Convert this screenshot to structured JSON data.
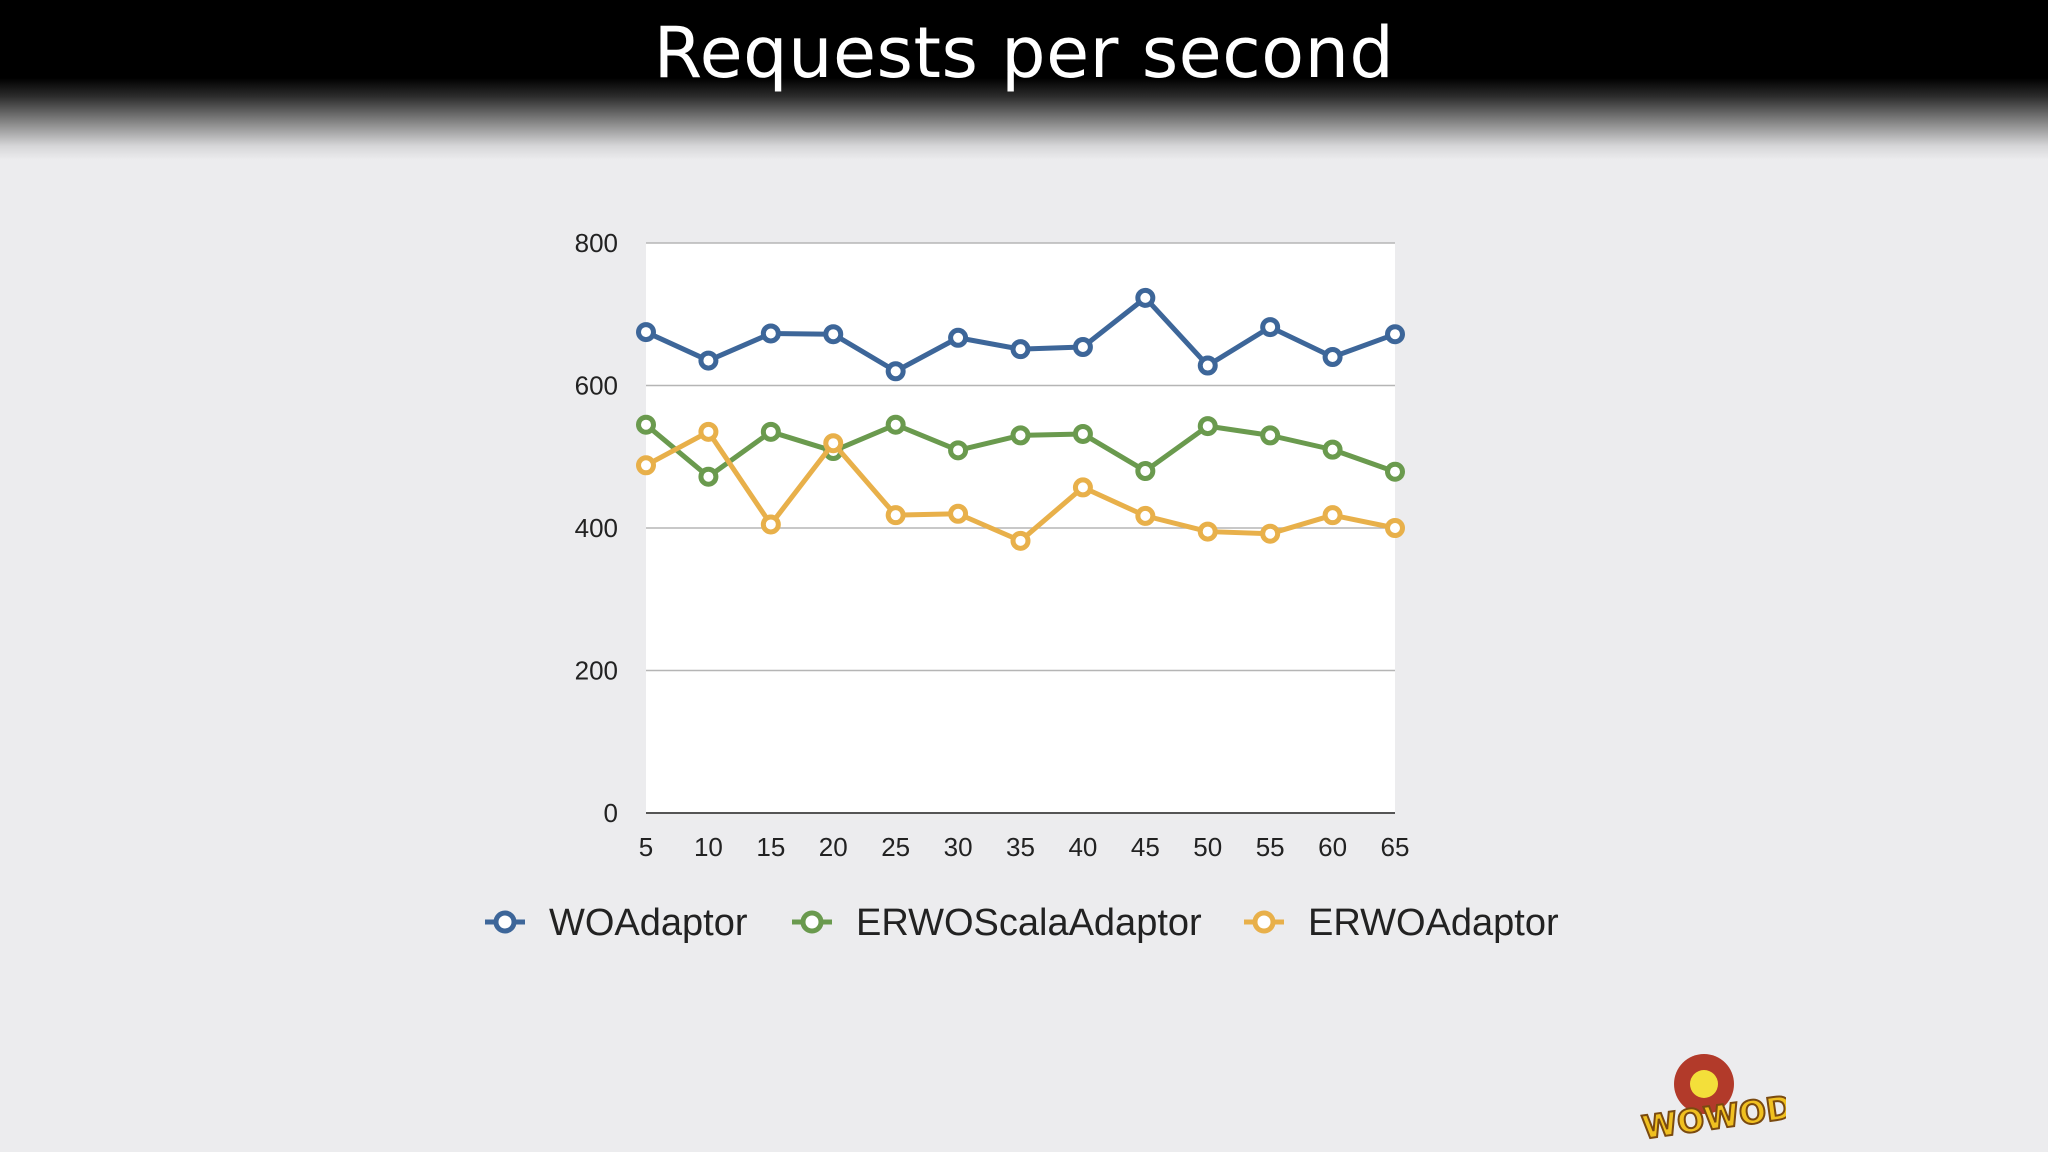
{
  "slide": {
    "title": "Requests per second"
  },
  "colors": {
    "WOAdaptor": "#3d6699",
    "ERWOScalaAdaptor": "#6a9a4e",
    "ERWOAdaptor": "#e8b04a"
  },
  "logo": {
    "text": "WOWODC",
    "icon": "wowodc-logo"
  },
  "chart_data": {
    "type": "line",
    "title": "",
    "xlabel": "",
    "ylabel": "",
    "x": [
      5,
      10,
      15,
      20,
      25,
      30,
      35,
      40,
      45,
      50,
      55,
      60,
      65
    ],
    "ylim": [
      0,
      800
    ],
    "yticks": [
      0,
      200,
      400,
      600,
      800
    ],
    "grid": true,
    "legend_position": "bottom",
    "series": [
      {
        "name": "WOAdaptor",
        "color": "#3d6699",
        "values": [
          675,
          635,
          673,
          672,
          620,
          667,
          651,
          654,
          723,
          628,
          682,
          640,
          672
        ]
      },
      {
        "name": "ERWOScalaAdaptor",
        "color": "#6a9a4e",
        "values": [
          545,
          472,
          535,
          508,
          545,
          509,
          530,
          532,
          480,
          543,
          530,
          510,
          479
        ]
      },
      {
        "name": "ERWOAdaptor",
        "color": "#e8b04a",
        "values": [
          488,
          535,
          405,
          519,
          418,
          420,
          382,
          457,
          417,
          395,
          392,
          418,
          400
        ]
      }
    ]
  }
}
